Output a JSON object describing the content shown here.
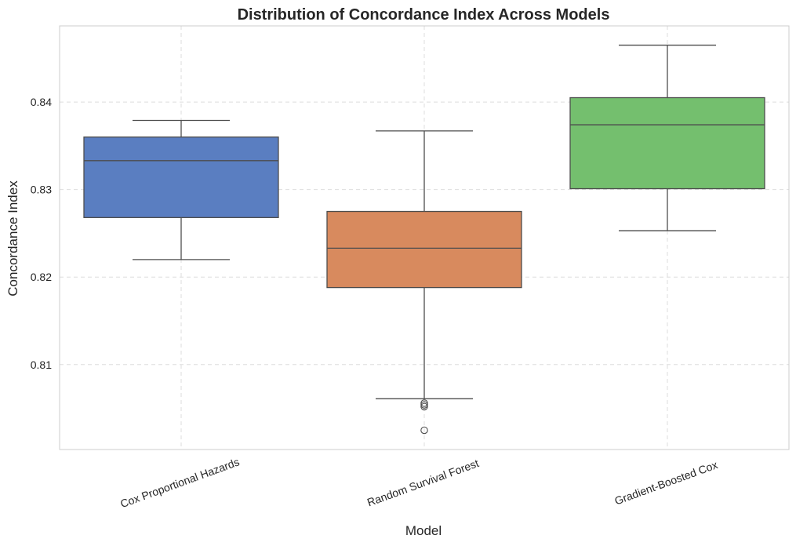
{
  "chart_data": {
    "type": "box",
    "title": "Distribution of Concordance Index Across Models",
    "xlabel": "Model",
    "ylabel": "Concordance Index",
    "ylim": [
      0.8003,
      0.8487
    ],
    "yticks": [
      0.81,
      0.82,
      0.83,
      0.84
    ],
    "ytick_labels": [
      "0.81",
      "0.82",
      "0.83",
      "0.84"
    ],
    "grid": true,
    "categories": [
      "Cox Proportional Hazards",
      "Random Survival Forest",
      "Gradient-Boosted Cox"
    ],
    "boxes": [
      {
        "category": "Cox Proportional Hazards",
        "whisker_low": 0.822,
        "q1": 0.8268,
        "median": 0.8333,
        "q3": 0.836,
        "whisker_high": 0.8379,
        "outliers": [],
        "color": "#5a7ec1"
      },
      {
        "category": "Random Survival Forest",
        "whisker_low": 0.8061,
        "q1": 0.8188,
        "median": 0.8233,
        "q3": 0.8275,
        "whisker_high": 0.8367,
        "outliers": [
          0.8056,
          0.8054,
          0.8052,
          0.8025
        ],
        "color": "#d88a5e"
      },
      {
        "category": "Gradient-Boosted Cox",
        "whisker_low": 0.8253,
        "q1": 0.8301,
        "median": 0.8374,
        "q3": 0.8405,
        "whisker_high": 0.8465,
        "outliers": [],
        "color": "#74bf6e"
      }
    ]
  }
}
